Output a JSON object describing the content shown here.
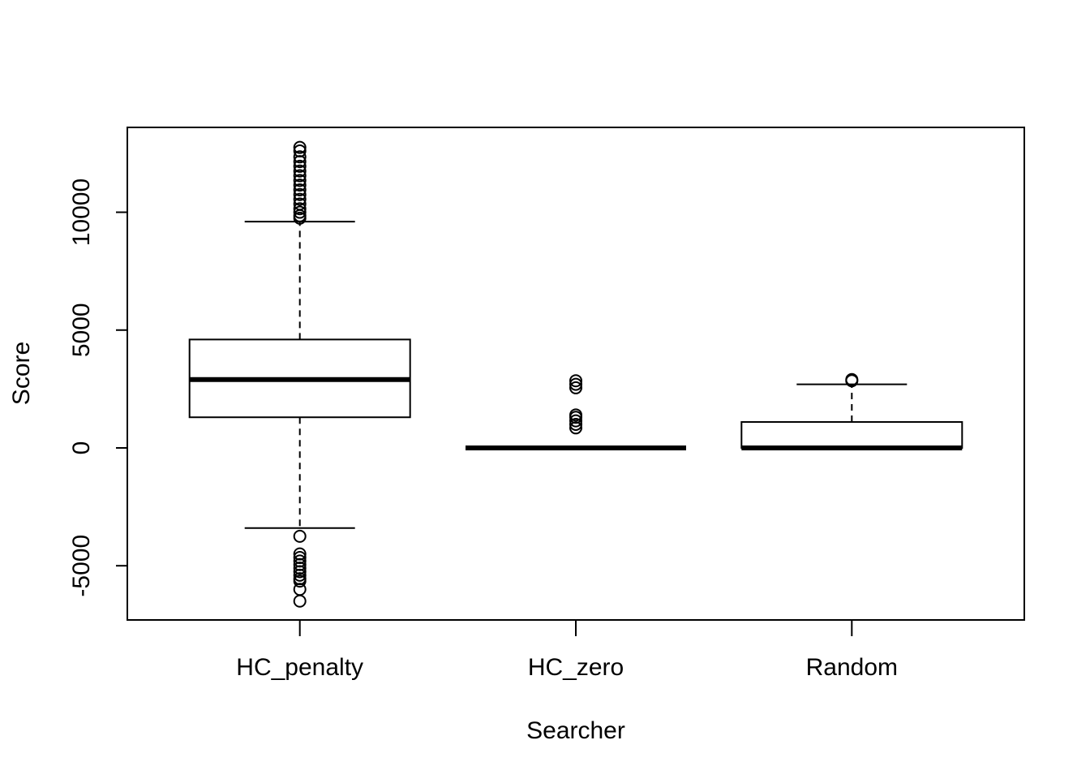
{
  "chart_data": {
    "type": "boxplot",
    "title": "",
    "xlabel": "Searcher",
    "ylabel": "Score",
    "ylim": [
      -7300,
      13600
    ],
    "yticks": [
      -5000,
      0,
      5000,
      10000
    ],
    "ytick_labels": [
      "-5000",
      "0",
      "5000",
      "10000"
    ],
    "grid": false,
    "legend": "none",
    "categories": [
      "HC_penalty",
      "HC_zero",
      "Random"
    ],
    "boxes": [
      {
        "name": "HC_penalty",
        "whisker_low": -3400,
        "q1": 1300,
        "median": 2900,
        "q3": 4600,
        "whisker_high": 9600,
        "outliers": [
          9750,
          9850,
          10000,
          10150,
          10350,
          10550,
          10750,
          10950,
          11150,
          11350,
          11550,
          11750,
          11950,
          12150,
          12350,
          12600,
          12750,
          -3750,
          -4500,
          -4650,
          -4800,
          -4950,
          -5100,
          -5250,
          -5400,
          -5550,
          -5650,
          -6000,
          -6500
        ]
      },
      {
        "name": "HC_zero",
        "whisker_low": 0,
        "q1": 0,
        "median": 0,
        "q3": 0,
        "whisker_high": 0,
        "outliers": [
          850,
          1000,
          1150,
          1300,
          1400,
          2550,
          2700,
          2850
        ]
      },
      {
        "name": "Random",
        "whisker_low": 0,
        "q1": 0,
        "median": 0,
        "q3": 1100,
        "whisker_high": 2700,
        "outliers": [
          2850,
          2900
        ]
      }
    ]
  }
}
